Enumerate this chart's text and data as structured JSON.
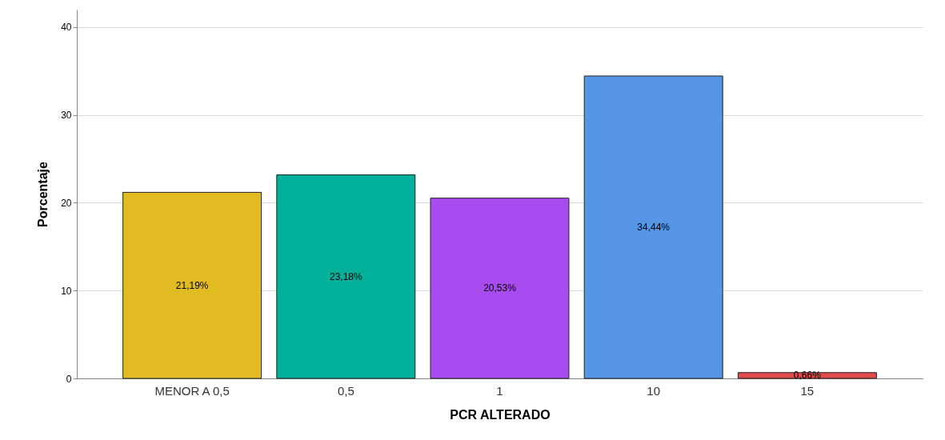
{
  "chart_data": {
    "type": "bar",
    "xlabel": "PCR ALTERADO",
    "ylabel": "Porcentaje",
    "categories": [
      "MENOR A 0,5",
      "0,5",
      "1",
      "10",
      "15"
    ],
    "values": [
      21.19,
      23.18,
      20.53,
      34.44,
      0.66
    ],
    "colors": [
      "#e0bb22",
      "#00b09b",
      "#a94cef",
      "#5596e6",
      "#e04b4b"
    ],
    "value_labels": [
      "21,19%",
      "23,18%",
      "20,53%",
      "34,44%",
      "0,66%"
    ],
    "ylim": [
      0,
      42
    ],
    "yticks": [
      0,
      10,
      20,
      30,
      40
    ],
    "grid": "y",
    "legend": false
  }
}
